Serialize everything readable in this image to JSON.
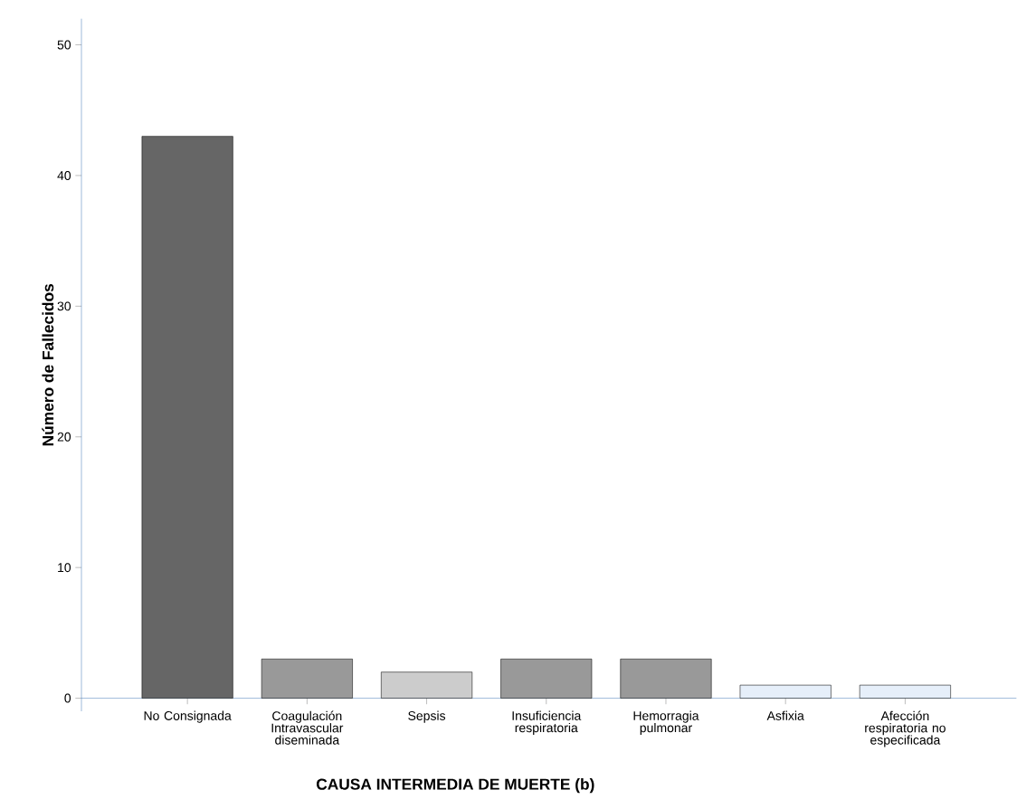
{
  "chart_data": {
    "type": "bar",
    "xlabel": "CAUSA INTERMEDIA DE MUERTE (b)",
    "ylabel": "Número de Fallecidos",
    "categories": [
      "No Consignada",
      "Coagulación Intravascular diseminada",
      "Sepsis",
      "Insuficiencia respiratoria",
      "Hemorragia pulmonar",
      "Asfixia",
      "Afección respiratoria no especificada"
    ],
    "values": [
      43,
      3,
      2,
      3,
      3,
      1,
      1
    ],
    "colors": [
      "#666666",
      "#999999",
      "#cccccc",
      "#999999",
      "#999999",
      "#e6effa",
      "#e6effa"
    ],
    "ylim": [
      -1,
      52
    ],
    "yticks": [
      0,
      10,
      20,
      30,
      40,
      50
    ]
  }
}
